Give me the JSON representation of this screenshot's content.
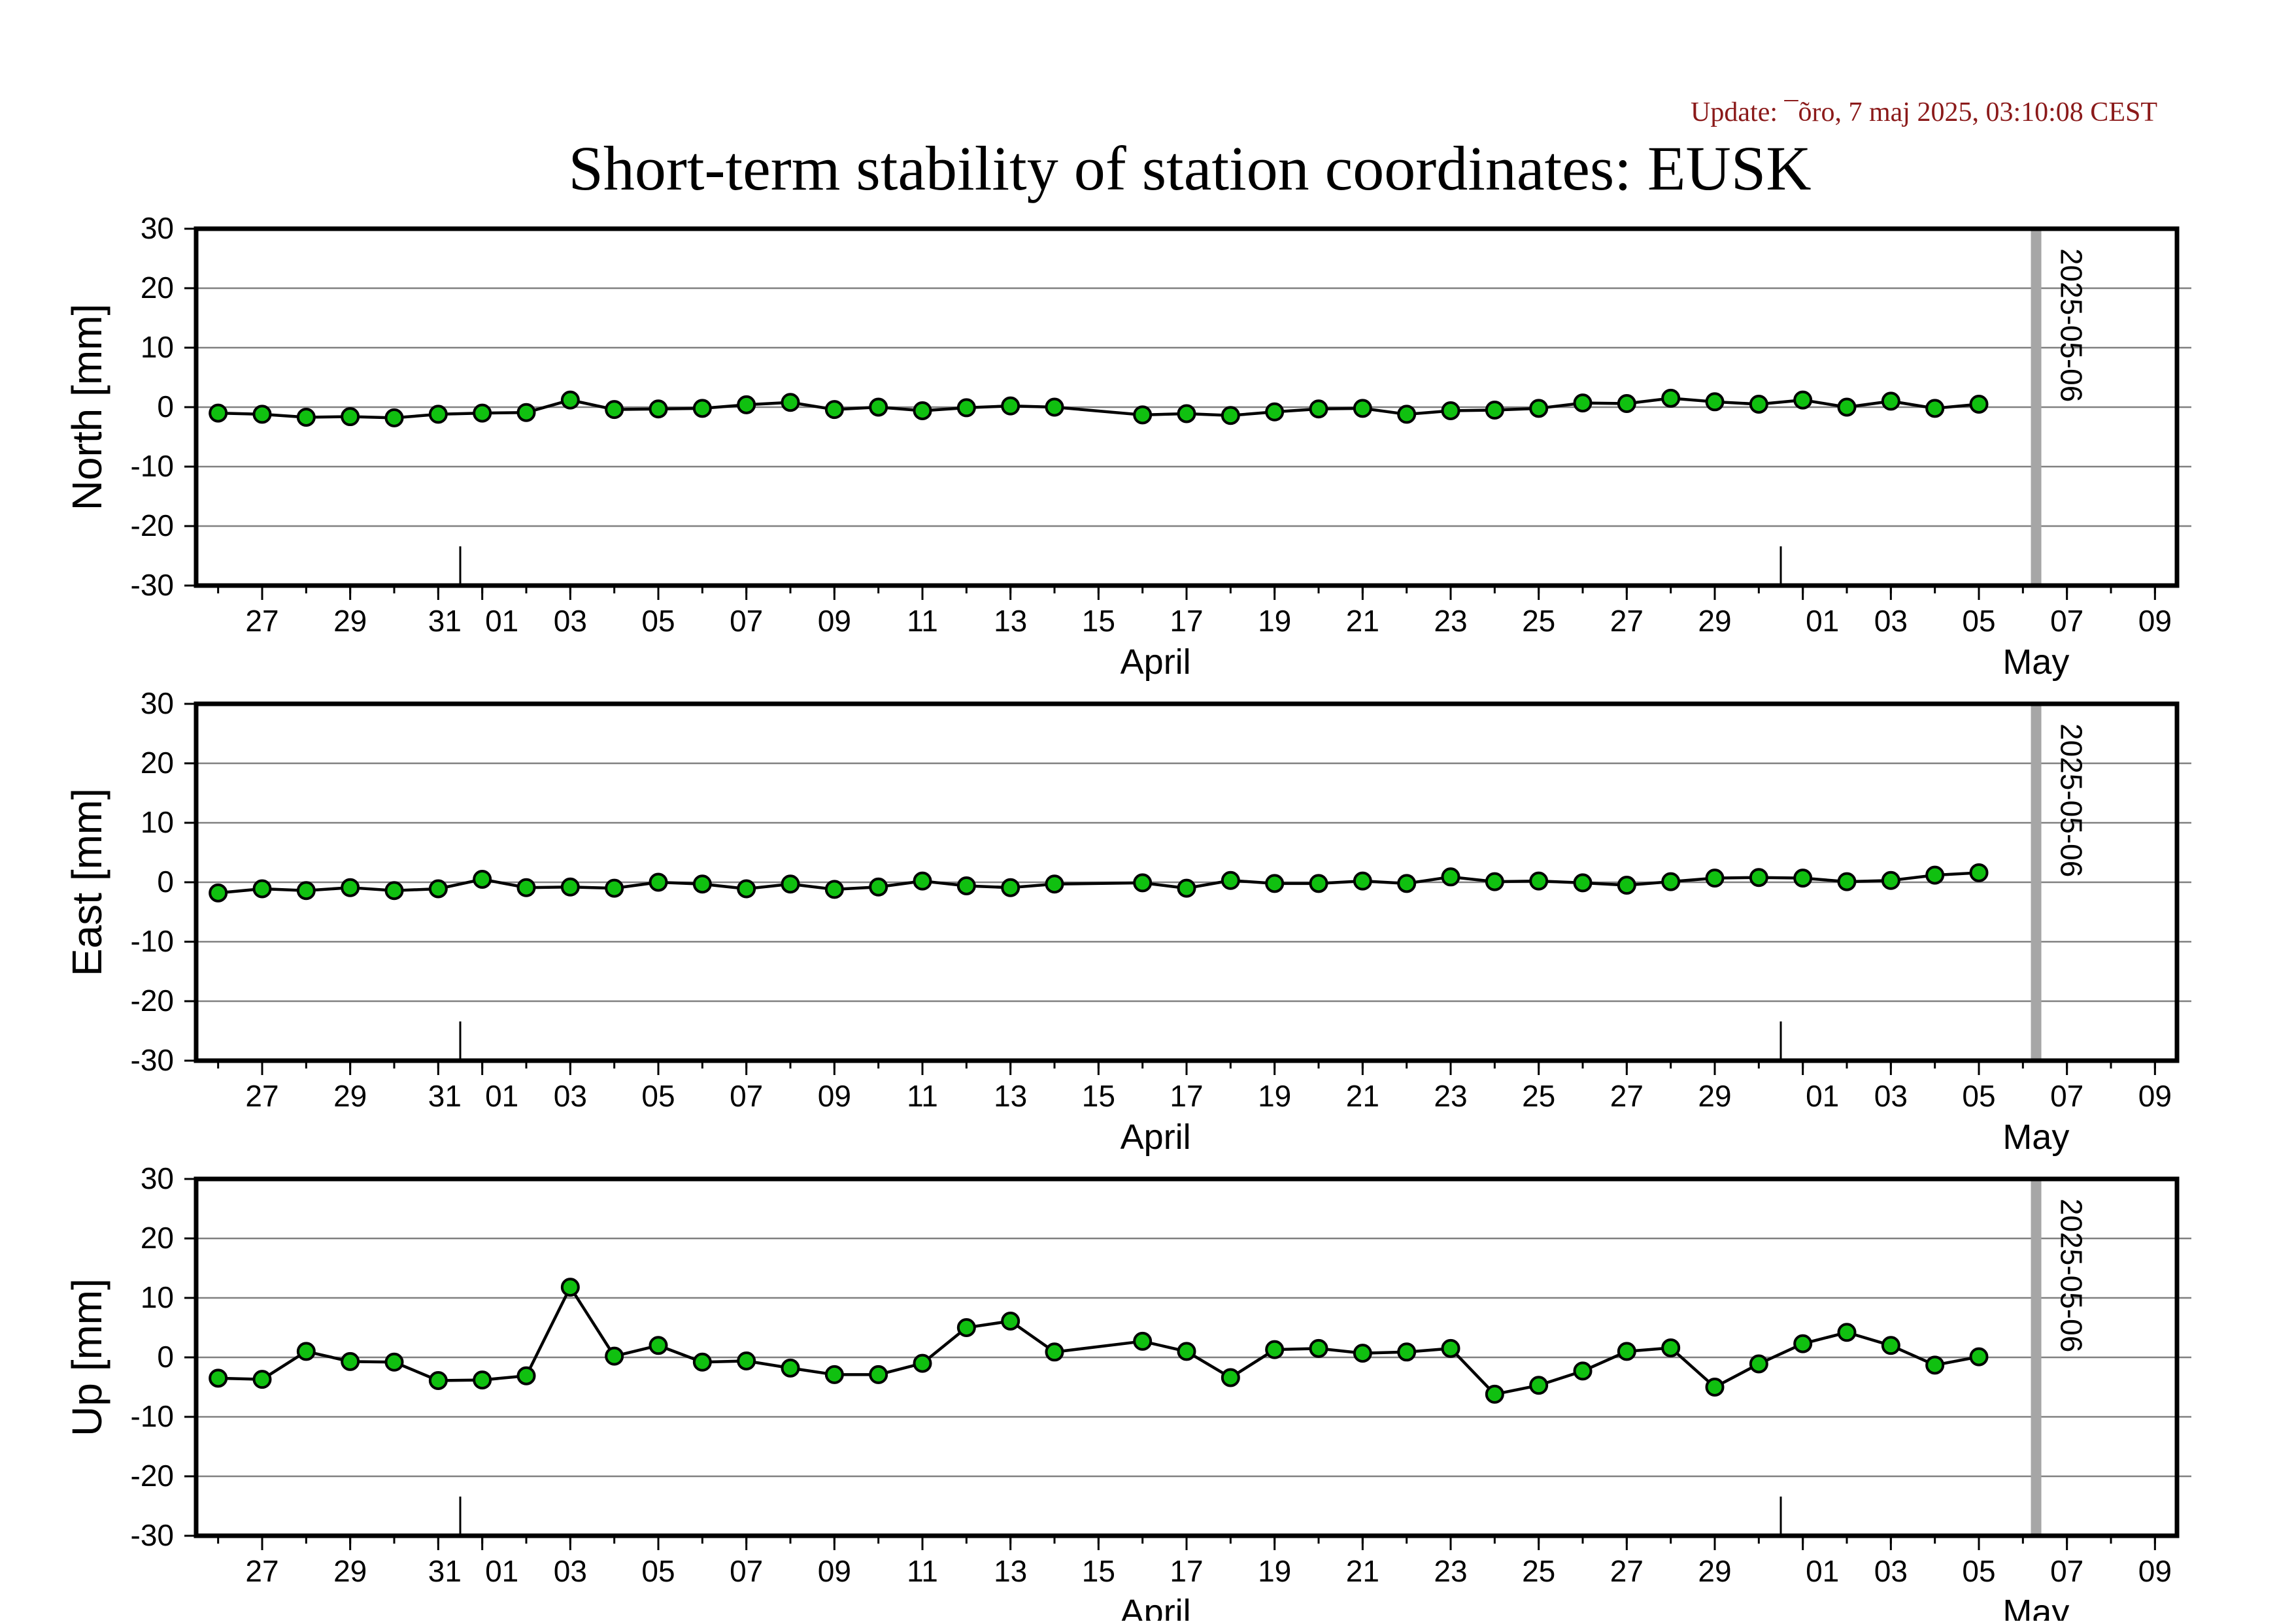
{
  "header": {
    "update_text": "Update: ¯õro, 7 maj 2025, 03:10:08 CEST",
    "title": "Short-term stability of station coordinates: EUSK"
  },
  "colors": {
    "update_text": "#8b1a1a",
    "marker_fill": "#10c010",
    "marker_stroke": "#000000",
    "line": "#000000",
    "grid": "#808080",
    "vline": "#a6a6a6",
    "frame": "#000000"
  },
  "x_axis": {
    "tick_labels": [
      "27",
      "29",
      "31",
      "01",
      "03",
      "05",
      "07",
      "09",
      "11",
      "13",
      "15",
      "17",
      "19",
      "21",
      "23",
      "25",
      "27",
      "29",
      "01",
      "03",
      "05",
      "07",
      "09"
    ],
    "tick_day_offsets": [
      1,
      3,
      5,
      6,
      8,
      10,
      12,
      14,
      16,
      18,
      20,
      22,
      24,
      26,
      28,
      30,
      32,
      34,
      36,
      38,
      40,
      42,
      44
    ],
    "month_labels": [
      {
        "label": "April",
        "day_offset": 21
      },
      {
        "label": "May",
        "day_offset": 41
      }
    ],
    "month_boundaries_day_offset": [
      5.5,
      35.5
    ],
    "start_date": "2025-03-26",
    "range_days": [
      -0.5,
      44.5
    ]
  },
  "event_line": {
    "label": "2025-05-06",
    "day_offset": 41.3
  },
  "chart_data": [
    {
      "type": "line",
      "ylabel": "North [mm]",
      "ylim": [
        -30,
        30
      ],
      "yticks": [
        -30,
        -20,
        -10,
        0,
        10,
        20,
        30
      ],
      "grid": true,
      "x": [
        0,
        1,
        2,
        3,
        4,
        5,
        6,
        7,
        8,
        9,
        10,
        11,
        12,
        13,
        14,
        15,
        16,
        17,
        18,
        19,
        21,
        22,
        23,
        24,
        25,
        26,
        27,
        28,
        29,
        30,
        31,
        32,
        33,
        34,
        35,
        36,
        37,
        38,
        39,
        40
      ],
      "values": [
        -1.0,
        -1.2,
        -1.7,
        -1.6,
        -1.8,
        -1.2,
        -1.0,
        -0.9,
        1.2,
        -0.4,
        -0.3,
        -0.2,
        0.4,
        0.8,
        -0.4,
        0.0,
        -0.6,
        -0.1,
        0.2,
        0.0,
        -1.3,
        -1.1,
        -1.4,
        -0.8,
        -0.3,
        -0.2,
        -1.2,
        -0.6,
        -0.5,
        -0.2,
        0.7,
        0.6,
        1.5,
        0.9,
        0.5,
        1.2,
        0.0,
        1.0,
        -0.2,
        0.5
      ]
    },
    {
      "type": "line",
      "ylabel": "East [mm]",
      "ylim": [
        -30,
        30
      ],
      "yticks": [
        -30,
        -20,
        -10,
        0,
        10,
        20,
        30
      ],
      "grid": true,
      "x": [
        0,
        1,
        2,
        3,
        4,
        5,
        6,
        7,
        8,
        9,
        10,
        11,
        12,
        13,
        14,
        15,
        16,
        17,
        18,
        19,
        21,
        22,
        23,
        24,
        25,
        26,
        27,
        28,
        29,
        30,
        31,
        32,
        33,
        34,
        35,
        36,
        37,
        38,
        39,
        40
      ],
      "values": [
        -1.8,
        -1.1,
        -1.4,
        -0.9,
        -1.4,
        -1.1,
        0.5,
        -0.9,
        -0.8,
        -1.0,
        0.0,
        -0.3,
        -1.1,
        -0.3,
        -1.2,
        -0.8,
        0.2,
        -0.6,
        -0.9,
        -0.3,
        -0.1,
        -1.0,
        0.3,
        -0.2,
        -0.2,
        0.2,
        -0.2,
        0.9,
        0.1,
        0.2,
        -0.1,
        -0.5,
        0.1,
        0.7,
        0.8,
        0.7,
        0.1,
        0.3,
        1.2,
        1.6
      ]
    },
    {
      "type": "line",
      "ylabel": "Up [mm]",
      "ylim": [
        -30,
        30
      ],
      "yticks": [
        -30,
        -20,
        -10,
        0,
        10,
        20,
        30
      ],
      "grid": true,
      "x": [
        0,
        1,
        2,
        3,
        4,
        5,
        6,
        7,
        8,
        9,
        10,
        11,
        12,
        13,
        14,
        15,
        16,
        17,
        18,
        19,
        21,
        22,
        23,
        24,
        25,
        26,
        27,
        28,
        29,
        30,
        31,
        32,
        33,
        34,
        35,
        36,
        37,
        38,
        39,
        40
      ],
      "values": [
        -3.5,
        -3.7,
        1.0,
        -0.7,
        -0.8,
        -3.9,
        -3.8,
        -3.1,
        11.8,
        0.2,
        2.0,
        -0.8,
        -0.6,
        -1.8,
        -2.9,
        -2.9,
        -1.0,
        5.0,
        6.1,
        0.9,
        2.7,
        1.0,
        -3.4,
        1.3,
        1.5,
        0.7,
        0.9,
        1.5,
        -6.2,
        -4.7,
        -2.3,
        1.0,
        1.6,
        -5.0,
        -1.1,
        2.3,
        4.2,
        2.0,
        -1.3,
        0.1
      ]
    }
  ]
}
